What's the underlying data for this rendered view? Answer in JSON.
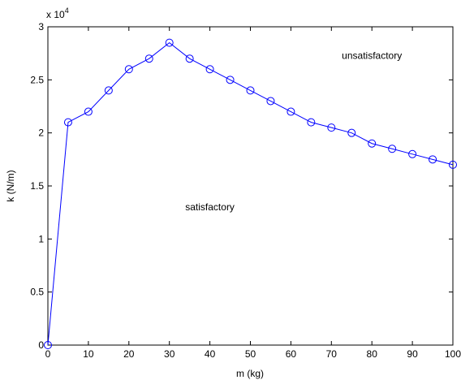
{
  "chart_data": {
    "type": "line",
    "title": "",
    "xlabel": "m (kg)",
    "ylabel": "k (N/m)",
    "y_exponent_base": "x 10",
    "y_exponent_power": "4",
    "xlim": [
      0,
      100
    ],
    "ylim": [
      0,
      3
    ],
    "x_ticks": [
      0,
      10,
      20,
      30,
      40,
      50,
      60,
      70,
      80,
      90,
      100
    ],
    "y_ticks": [
      0,
      0.5,
      1,
      1.5,
      2,
      2.5,
      3
    ],
    "y_tick_labels": [
      "0",
      "0.5",
      "1",
      "1.5",
      "2",
      "2.5",
      "3"
    ],
    "grid": false,
    "marker": "circle",
    "line_color": "#0000ff",
    "series": [
      {
        "x": [
          0,
          5,
          10,
          15,
          20,
          25,
          30,
          35,
          40,
          45,
          50,
          55,
          60,
          65,
          70,
          75,
          80,
          85,
          90,
          95,
          100
        ],
        "y": [
          0,
          2.1,
          2.2,
          2.4,
          2.6,
          2.7,
          2.85,
          2.7,
          2.6,
          2.5,
          2.4,
          2.3,
          2.2,
          2.1,
          2.05,
          2.0,
          1.9,
          1.85,
          1.8,
          1.75,
          1.7
        ]
      }
    ],
    "annotations": [
      {
        "text": "unsatisfactory",
        "x": 80,
        "y": 2.73
      },
      {
        "text": "satisfactory",
        "x": 40,
        "y": 1.3
      }
    ]
  }
}
